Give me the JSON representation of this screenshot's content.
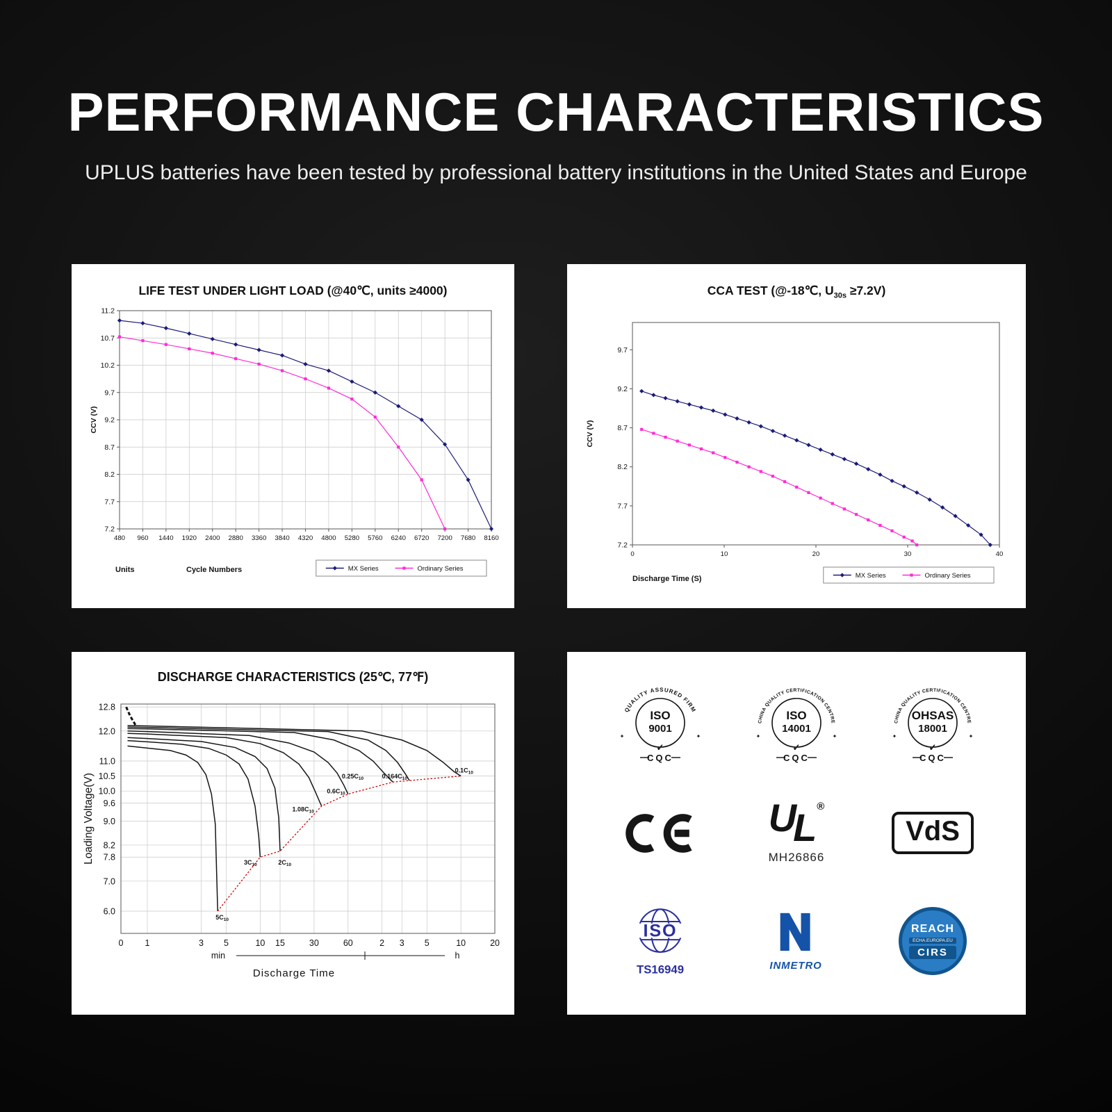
{
  "header": {
    "title": "PERFORMANCE CHARACTERISTICS",
    "subtitle": "UPLUS batteries have been tested by professional battery institutions in the United States and Europe"
  },
  "colors": {
    "background": "#000000",
    "panel": "#ffffff",
    "mx_series": "#1b1b7a",
    "ordinary_series": "#ff2bd6",
    "discharge_envelope": "#cf0000",
    "cert_blue": "#2b2f9e",
    "inmetro_blue": "#1553a8",
    "reach_blue": "#2a7dc5",
    "reach_dark_blue": "#11558f"
  },
  "chart_data": [
    {
      "id": "life-test",
      "type": "line",
      "title": "LIFE TEST UNDER LIGHT LOAD (@40℃, units ≥4000)",
      "ylabel": "CCV (V)",
      "xlabel_left": "Units",
      "xlabel_right": "Cycle Numbers",
      "ylim": [
        7.2,
        11.2
      ],
      "yticks": [
        7.2,
        7.7,
        8.2,
        8.7,
        9.2,
        9.7,
        10.2,
        10.7,
        11.2
      ],
      "xlim": [
        480,
        8160
      ],
      "xticks": [
        480,
        960,
        1440,
        1920,
        2400,
        2880,
        3360,
        3840,
        4320,
        4800,
        5280,
        5760,
        6240,
        6720,
        7200,
        7680,
        8160
      ],
      "grid": true,
      "legend_position": "bottom-right",
      "series": [
        {
          "name": "MX Series",
          "color": "#1b1b7a",
          "marker": "diamond",
          "x": [
            480,
            960,
            1440,
            1920,
            2400,
            2880,
            3360,
            3840,
            4320,
            4800,
            5280,
            5760,
            6240,
            6720,
            7200,
            7680,
            8160
          ],
          "y": [
            11.02,
            10.97,
            10.88,
            10.78,
            10.68,
            10.58,
            10.48,
            10.38,
            10.22,
            10.1,
            9.9,
            9.7,
            9.45,
            9.2,
            8.75,
            8.1,
            7.2
          ]
        },
        {
          "name": "Ordinary Series",
          "color": "#ff2bd6",
          "marker": "square",
          "x": [
            480,
            960,
            1440,
            1920,
            2400,
            2880,
            3360,
            3840,
            4320,
            4800,
            5280,
            5760,
            6240,
            6720,
            7200
          ],
          "y": [
            10.72,
            10.65,
            10.58,
            10.5,
            10.42,
            10.32,
            10.22,
            10.1,
            9.95,
            9.78,
            9.58,
            9.25,
            8.7,
            8.1,
            7.2
          ]
        }
      ]
    },
    {
      "id": "cca-test",
      "type": "line",
      "title_pre": "CCA TEST (@-18℃, U",
      "title_sub": "30s",
      "title_post": " ≥7.2V)",
      "ylabel": "CCV (V)",
      "xlabel": "Discharge Time (S)",
      "ylim": [
        7.2,
        10.05
      ],
      "yticks": [
        7.2,
        7.7,
        8.2,
        8.7,
        9.2,
        9.7
      ],
      "xlim": [
        0,
        40
      ],
      "xticks": [
        0,
        10,
        20,
        30,
        40
      ],
      "grid": false,
      "legend_position": "bottom-right",
      "series": [
        {
          "name": "MX Series",
          "color": "#1b1b7a",
          "marker": "diamond",
          "x": [
            1,
            2.3,
            3.6,
            4.9,
            6.2,
            7.5,
            8.8,
            10.1,
            11.4,
            12.7,
            14,
            15.3,
            16.6,
            17.9,
            19.2,
            20.5,
            21.8,
            23.1,
            24.4,
            25.7,
            27,
            28.3,
            29.6,
            31,
            32.4,
            33.8,
            35.2,
            36.6,
            38,
            39
          ],
          "y": [
            9.17,
            9.12,
            9.08,
            9.04,
            9.0,
            8.96,
            8.92,
            8.87,
            8.82,
            8.77,
            8.72,
            8.66,
            8.6,
            8.54,
            8.48,
            8.42,
            8.36,
            8.3,
            8.24,
            8.17,
            8.1,
            8.02,
            7.95,
            7.87,
            7.78,
            7.68,
            7.57,
            7.45,
            7.33,
            7.2
          ]
        },
        {
          "name": "Ordinary Series",
          "color": "#ff2bd6",
          "marker": "square",
          "x": [
            1,
            2.3,
            3.6,
            4.9,
            6.2,
            7.5,
            8.8,
            10.1,
            11.4,
            12.7,
            14,
            15.3,
            16.6,
            17.9,
            19.2,
            20.5,
            21.8,
            23.1,
            24.4,
            25.7,
            27,
            28.3,
            29.6,
            30.5,
            31
          ],
          "y": [
            8.68,
            8.63,
            8.58,
            8.53,
            8.48,
            8.43,
            8.38,
            8.32,
            8.26,
            8.2,
            8.14,
            8.08,
            8.01,
            7.94,
            7.87,
            7.8,
            7.73,
            7.66,
            7.59,
            7.52,
            7.45,
            7.38,
            7.3,
            7.25,
            7.2
          ]
        }
      ]
    },
    {
      "id": "discharge-characteristics",
      "type": "line-log",
      "title": "DISCHARGE CHARACTERISTICS (25℃, 77℉)",
      "ylabel": "Loading  Voltage(V)",
      "xlabel": "Discharge Time",
      "unit_min": "min",
      "unit_h": "h",
      "yticks": [
        12.8,
        12.0,
        11.0,
        10.5,
        10.0,
        9.6,
        9.0,
        8.2,
        7.8,
        7.0,
        6.0
      ],
      "xticks": [
        {
          "t": 0,
          "label": "0"
        },
        {
          "t": 1,
          "label": "1"
        },
        {
          "t": 3,
          "label": "3"
        },
        {
          "t": 5,
          "label": "5"
        },
        {
          "t": 10,
          "label": "10"
        },
        {
          "t": 15,
          "label": "15"
        },
        {
          "t": 30,
          "label": "30"
        },
        {
          "t": 60,
          "label": "60"
        },
        {
          "t": 120,
          "label": "2"
        },
        {
          "t": 180,
          "label": "3"
        },
        {
          "t": 300,
          "label": "5"
        },
        {
          "t": 600,
          "label": "10"
        },
        {
          "t": 1200,
          "label": "20"
        }
      ],
      "start_dash": [
        [
          0.2,
          12.8
        ],
        [
          0.35,
          12.5
        ],
        [
          0.55,
          12.2
        ]
      ],
      "curves": [
        {
          "rate": "5C",
          "sub": "10",
          "points": [
            [
              0.25,
              11.5
            ],
            [
              0.6,
              11.47
            ],
            [
              1,
              11.43
            ],
            [
              1.6,
              11.35
            ],
            [
              2.2,
              11.2
            ],
            [
              2.8,
              10.95
            ],
            [
              3.3,
              10.55
            ],
            [
              3.7,
              9.9
            ],
            [
              4.0,
              8.9
            ],
            [
              4.2,
              6.0
            ]
          ]
        },
        {
          "rate": "3C",
          "sub": "10",
          "points": [
            [
              0.25,
              11.68
            ],
            [
              1,
              11.64
            ],
            [
              2,
              11.56
            ],
            [
              3.5,
              11.42
            ],
            [
              5,
              11.2
            ],
            [
              6.5,
              10.9
            ],
            [
              7.8,
              10.4
            ],
            [
              9,
              9.5
            ],
            [
              9.7,
              8.5
            ],
            [
              10,
              7.8
            ]
          ]
        },
        {
          "rate": "2C",
          "sub": "10",
          "points": [
            [
              0.25,
              11.78
            ],
            [
              1,
              11.75
            ],
            [
              3,
              11.65
            ],
            [
              6,
              11.45
            ],
            [
              9,
              11.15
            ],
            [
              11.5,
              10.75
            ],
            [
              13.5,
              10.1
            ],
            [
              14.6,
              9.1
            ],
            [
              15,
              8.0
            ]
          ]
        },
        {
          "rate": "1.08C",
          "sub": "10",
          "points": [
            [
              0.25,
              11.92
            ],
            [
              1,
              11.9
            ],
            [
              5,
              11.78
            ],
            [
              10,
              11.58
            ],
            [
              16,
              11.28
            ],
            [
              22,
              10.9
            ],
            [
              27,
              10.45
            ],
            [
              31,
              9.95
            ],
            [
              34,
              9.6
            ],
            [
              35,
              9.5
            ]
          ]
        },
        {
          "rate": "0.6C",
          "sub": "10",
          "points": [
            [
              0.25,
              12.0
            ],
            [
              1,
              11.98
            ],
            [
              8,
              11.85
            ],
            [
              18,
              11.6
            ],
            [
              30,
              11.3
            ],
            [
              40,
              10.95
            ],
            [
              48,
              10.6
            ],
            [
              55,
              10.2
            ],
            [
              60,
              9.9
            ]
          ]
        },
        {
          "rate": "0.25C",
          "sub": "10",
          "points": [
            [
              0.25,
              12.08
            ],
            [
              1,
              12.07
            ],
            [
              20,
              11.95
            ],
            [
              45,
              11.7
            ],
            [
              75,
              11.35
            ],
            [
              100,
              11.0
            ],
            [
              125,
              10.6
            ],
            [
              145,
              10.35
            ],
            [
              150,
              10.3
            ]
          ]
        },
        {
          "rate": "0.164C",
          "sub": "10",
          "points": [
            [
              0.25,
              12.13
            ],
            [
              1,
              12.12
            ],
            [
              40,
              11.98
            ],
            [
              90,
              11.7
            ],
            [
              130,
              11.35
            ],
            [
              165,
              10.95
            ],
            [
              195,
              10.55
            ],
            [
              210,
              10.35
            ]
          ]
        },
        {
          "rate": "0.1C",
          "sub": "10",
          "points": [
            [
              0.25,
              12.18
            ],
            [
              1,
              12.17
            ],
            [
              80,
              12.0
            ],
            [
              180,
              11.7
            ],
            [
              300,
              11.35
            ],
            [
              420,
              10.95
            ],
            [
              520,
              10.65
            ],
            [
              600,
              10.5
            ]
          ]
        }
      ],
      "envelope": {
        "color": "#cf0000",
        "points": [
          [
            4.2,
            6.0
          ],
          [
            10,
            7.8
          ],
          [
            15,
            8.0
          ],
          [
            35,
            9.5
          ],
          [
            60,
            9.9
          ],
          [
            150,
            10.3
          ],
          [
            210,
            10.35
          ],
          [
            600,
            10.5
          ]
        ]
      },
      "labels": [
        {
          "t": 4.6,
          "v": 5.72,
          "pre": "5C",
          "sub": "10"
        },
        {
          "t": 8.2,
          "v": 7.55,
          "pre": "3C",
          "sub": "10"
        },
        {
          "t": 16.5,
          "v": 7.55,
          "pre": "2C",
          "sub": "10"
        },
        {
          "t": 24,
          "v": 9.32,
          "pre": "1.08C",
          "sub": "10"
        },
        {
          "t": 47,
          "v": 9.92,
          "pre": "0.6C",
          "sub": "10"
        },
        {
          "t": 66,
          "v": 10.42,
          "pre": "0.25C",
          "sub": "10"
        },
        {
          "t": 155,
          "v": 10.42,
          "pre": "0.164C",
          "sub": "10"
        },
        {
          "t": 640,
          "v": 10.62,
          "pre": "0.1C",
          "sub": "10"
        }
      ]
    }
  ],
  "certs": {
    "badges": [
      {
        "arc": "QUALITY ASSURED FIRM",
        "line1": "ISO",
        "line2": "9001",
        "check": "✓",
        "bottom": "CQC",
        "deco": "✦"
      },
      {
        "arc": "CHINA QUALITY CERTIFICATION CENTRE",
        "line1": "ISO",
        "line2": "14001",
        "check": "✓",
        "bottom": "CQC",
        "deco": "✦"
      },
      {
        "arc": "CHINA QUALITY CERTIFICATION CENTRE",
        "line1": "OHSAS",
        "line2": "18001",
        "check": "✓",
        "bottom": "CQC",
        "deco": "✦"
      }
    ],
    "ce": "CE",
    "ul": {
      "u": "U",
      "l": "L",
      "reg": "®",
      "code": "MH26866"
    },
    "vds": "VdS",
    "isots": {
      "iso": "ISO",
      "code": "TS16949"
    },
    "inmetro": {
      "label": "INMETRO"
    },
    "reach": {
      "top": "REACH",
      "mid": "ECHA.EUROPA.EU",
      "bottom": "CIRS"
    }
  }
}
